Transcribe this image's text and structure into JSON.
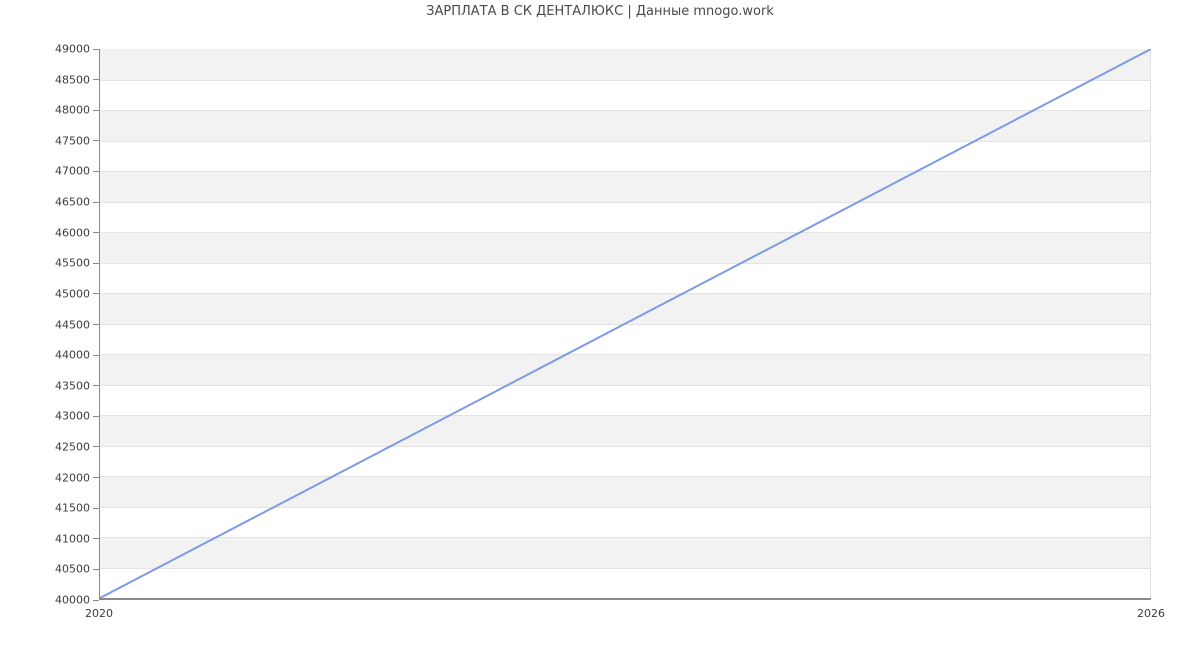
{
  "title": "ЗАРПЛАТА В СК ДЕНТАЛЮКС | Данные mnogo.work",
  "colors": {
    "background": "#ffffff",
    "line": "#7d9be4",
    "band_fill": "#f2f2f2",
    "gridline": "#e3e3e3",
    "plot_border_right": "#e0e0e0",
    "axis": "#8a8a8a",
    "tick_text": "#3d3d3d",
    "title_text": "#4a4a4a"
  },
  "chart_data": {
    "type": "line",
    "title": "ЗАРПЛАТА В СК ДЕНТАЛЮКС | Данные mnogo.work",
    "x": [
      2020,
      2026
    ],
    "y": [
      40000,
      49000
    ],
    "xlabel": "",
    "ylabel": "",
    "xlim": [
      2020,
      2026
    ],
    "ylim": [
      40000,
      49000
    ],
    "y_tick_step": 500,
    "y_ticks": [
      40000,
      40500,
      41000,
      41500,
      42000,
      42500,
      43000,
      43500,
      44000,
      44500,
      45000,
      45500,
      46000,
      46500,
      47000,
      47500,
      48000,
      48500,
      49000
    ],
    "x_ticks": [
      2020,
      2026
    ],
    "legend": "none",
    "grid": "horizontal alternating gray/white bands, top band gray",
    "line_color": "#7d9be4"
  }
}
